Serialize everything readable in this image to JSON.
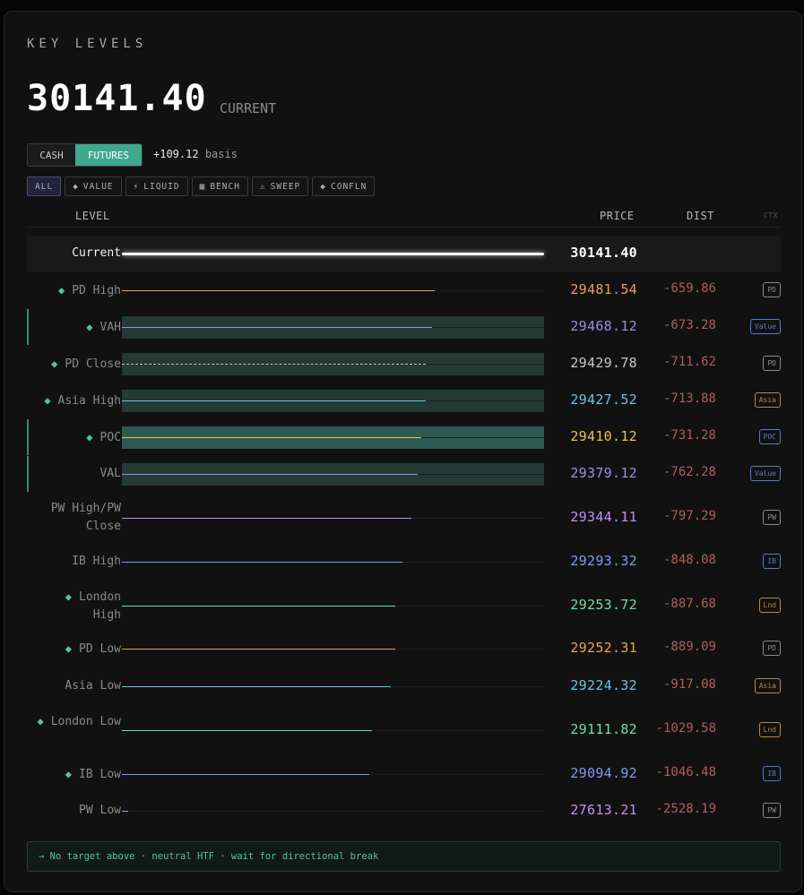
{
  "title": "KEY LEVELS",
  "current_price": "30141.40",
  "current_label": "CURRENT",
  "toggle": {
    "cash": "CASH",
    "futures": "FUTURES"
  },
  "basis": {
    "value": "+109.12",
    "label": "basis"
  },
  "filters": [
    {
      "icon": "",
      "label": "ALL"
    },
    {
      "icon": "◆",
      "label": "VALUE"
    },
    {
      "icon": "⚡",
      "label": "LIQUID"
    },
    {
      "icon": "▦",
      "label": "BENCH"
    },
    {
      "icon": "⚠",
      "label": "SWEEP"
    },
    {
      "icon": "◆",
      "label": "CONFLN"
    }
  ],
  "headers": {
    "level": "LEVEL",
    "price": "PRICE",
    "dist": "DIST",
    "ctx": "CTX"
  },
  "rows": [
    {
      "label": "Current",
      "price": "30141.40",
      "dist": "",
      "ctx": "",
      "fill": 1.0,
      "kind": "current"
    },
    {
      "label": "PD High",
      "dia": true,
      "price": "29481.54",
      "dist": "-659.86",
      "ctx": "PD",
      "fill": 0.74,
      "color": "#e8a05a",
      "badge": "#8a8a8a"
    },
    {
      "label": "VAH",
      "dia": true,
      "price": "29468.12",
      "dist": "-673.28",
      "ctx": "Value",
      "fill": 0.735,
      "color": "#9a8fe0",
      "badge": "#5a78c8",
      "band": "value",
      "vline": true
    },
    {
      "label": "PD Close",
      "dia": true,
      "price": "29429.78",
      "dist": "-711.62",
      "ctx": "PD",
      "fill": 0.72,
      "color": "#c8c8c8",
      "badge": "#8a8a8a",
      "band": "value",
      "dashed": true
    },
    {
      "label": "Asia High",
      "dia": true,
      "price": "29427.52",
      "dist": "-713.88",
      "ctx": "Asia",
      "fill": 0.72,
      "color": "#6cc4e0",
      "badge": "#b8884a",
      "band": "value"
    },
    {
      "label": "POC",
      "dia": true,
      "price": "29410.12",
      "dist": "-731.28",
      "ctx": "POC",
      "fill": 0.71,
      "color": "#f0c050",
      "badge": "#5a78c8",
      "band": "poc",
      "vline": true
    },
    {
      "label": "VAL",
      "price": "29379.12",
      "dist": "-762.28",
      "ctx": "Value",
      "fill": 0.7,
      "color": "#9a8fe0",
      "badge": "#5a78c8",
      "band": "value",
      "vline": true
    },
    {
      "label": "PW High/PW Close",
      "price": "29344.11",
      "dist": "-797.29",
      "ctx": "PW",
      "fill": 0.685,
      "color": "#c48ff0",
      "badge": "#8a8a8a"
    },
    {
      "label": "IB High",
      "price": "29293.32",
      "dist": "-848.08",
      "ctx": "IB",
      "fill": 0.665,
      "color": "#7d9cf0",
      "badge": "#5a78c8"
    },
    {
      "label": "London High",
      "dia": true,
      "price": "29253.72",
      "dist": "-887.68",
      "ctx": "Lnd",
      "fill": 0.648,
      "color": "#6ce0a8",
      "badge": "#b8884a"
    },
    {
      "label": "PD Low",
      "dia": true,
      "price": "29252.31",
      "dist": "-889.09",
      "ctx": "PD",
      "fill": 0.648,
      "color": "#e8a05a",
      "badge": "#8a8a8a"
    },
    {
      "label": "Asia Low",
      "price": "29224.32",
      "dist": "-917.08",
      "ctx": "Asia",
      "fill": 0.637,
      "color": "#6cc4e0",
      "badge": "#b8884a"
    },
    {
      "label": "London Low",
      "dia": true,
      "price": "29111.82",
      "dist": "-1029.58",
      "ctx": "Lnd",
      "fill": 0.592,
      "color": "#6ce0a8",
      "badge": "#b8884a"
    },
    {
      "label": "IB Low",
      "dia": true,
      "price": "29094.92",
      "dist": "-1046.48",
      "ctx": "IB",
      "fill": 0.586,
      "color": "#7d9cf0",
      "badge": "#5a78c8"
    },
    {
      "label": "PW Low",
      "price": "27613.21",
      "dist": "-2528.19",
      "ctx": "PW",
      "fill": 0.015,
      "color": "#c48ff0",
      "badge": "#8a8a8a"
    }
  ],
  "footer": "→ No target above · neutral HTF · wait for directional break"
}
